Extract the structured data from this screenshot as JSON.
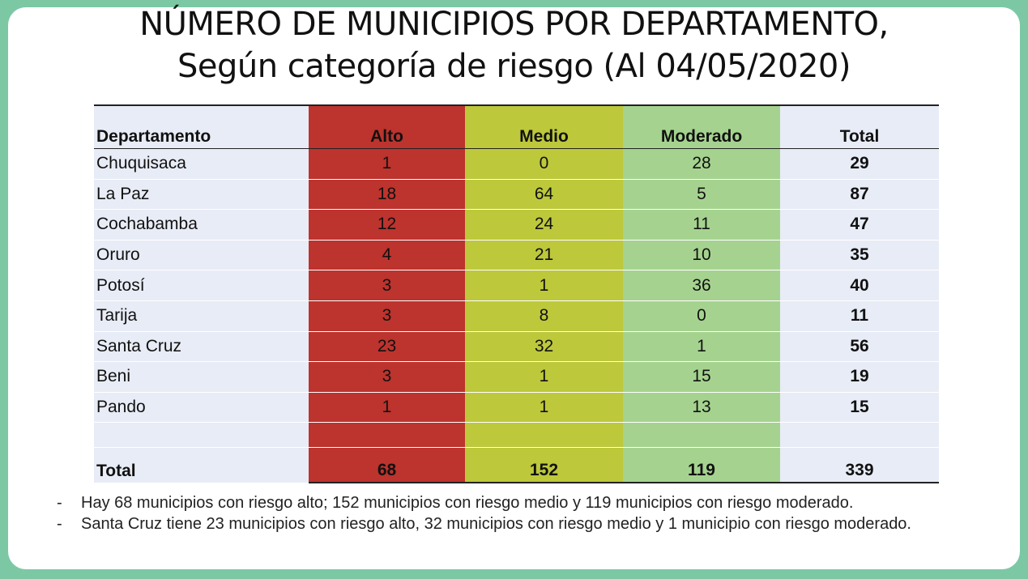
{
  "title": {
    "line1": "NÚMERO DE MUNICIPIOS POR DEPARTAMENTO,",
    "line2": "Según categoría de riesgo (Al 04/05/2020)"
  },
  "table": {
    "headers": [
      "Departamento",
      "Alto",
      "Medio",
      "Moderado",
      "Total"
    ],
    "rows": [
      [
        "Chuquisaca",
        "1",
        "0",
        "28",
        "29"
      ],
      [
        "La Paz",
        "18",
        "64",
        "5",
        "87"
      ],
      [
        "Cochabamba",
        "12",
        "24",
        "11",
        "47"
      ],
      [
        "Oruro",
        "4",
        "21",
        "10",
        "35"
      ],
      [
        "Potosí",
        "3",
        "1",
        "36",
        "40"
      ],
      [
        "Tarija",
        "3",
        "8",
        "0",
        "11"
      ],
      [
        "Santa Cruz",
        "23",
        "32",
        "1",
        "56"
      ],
      [
        "Beni",
        "3",
        "1",
        "15",
        "19"
      ],
      [
        "Pando",
        "1",
        "1",
        "13",
        "15"
      ]
    ],
    "total_row": [
      "Total",
      "68",
      "152",
      "119",
      "339"
    ]
  },
  "notes": [
    "Hay 68 municipios con riesgo alto; 152 municipios con riesgo medio y 119 municipios con riesgo moderado.",
    "Santa Cruz tiene 23 municipios con riesgo alto, 32 municipios con riesgo medio y 1 municipio con riesgo moderado."
  ],
  "colors": {
    "alto": "#bd332d",
    "medio": "#bdc83b",
    "moderado": "#a5d38f",
    "frame": "#7cc8a5"
  }
}
